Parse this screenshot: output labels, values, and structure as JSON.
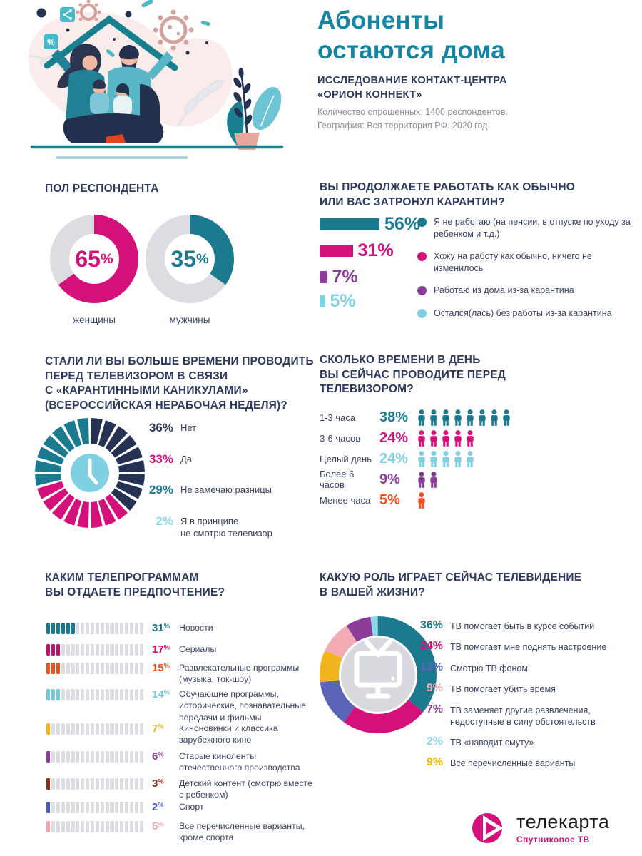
{
  "header": {
    "title": "Абоненты\nостаются дома",
    "subtitle": "ИССЛЕДОВАНИЕ КОНТАКТ-ЦЕНТРА\n«ОРИОН КОННЕКТ»",
    "meta": "Количество опрошенных: 1400  респондентов.\nГеография: Вся территория РФ. 2020 год."
  },
  "logo": {
    "name": "телекарта",
    "tagline": "Спутниковое ТВ",
    "color": "#d4117a"
  },
  "palette": {
    "navy": "#2d3a5e",
    "teal": "#1c7a8e",
    "magenta": "#d4117a",
    "purple": "#8c3d97",
    "lightblue": "#7fd0e2",
    "track_gray": "#dcdde3",
    "center_gray": "#d8d9de"
  },
  "chart_data": [
    {
      "id": "gender",
      "type": "donut",
      "title": "ПОЛ РЕСПОНДЕНТА",
      "items": [
        {
          "label": "женщины",
          "value": 65,
          "color": "#d4117a"
        },
        {
          "label": "мужчины",
          "value": 35,
          "color": "#1c7a8e"
        }
      ],
      "track_color": "#dcdde3",
      "legend_position": "below",
      "grid": false
    },
    {
      "id": "work",
      "type": "bar",
      "title": "ВЫ ПРОДОЛЖАЕТЕ РАБОТАТЬ КАК ОБЫЧНО\nИЛИ ВАС ЗАТРОНУЛ КАРАНТИН?",
      "items": [
        {
          "value": 56,
          "color": "#1c7a8e",
          "label": "Я  не работаю (на пенсии, в отпуске по уходу за ребенком и т.д.)"
        },
        {
          "value": 31,
          "color": "#d4117a",
          "label": "Хожу на работу как обычно, ничего не изменилось"
        },
        {
          "value": 7,
          "color": "#8c3d97",
          "label": "Работаю из дома из-за карантина"
        },
        {
          "value": 5,
          "color": "#7fd0e2",
          "label": "Остался(лась) без работы из-за карантина"
        }
      ],
      "xlim": [
        0,
        60
      ],
      "legend_position": "right",
      "grid": false
    },
    {
      "id": "tv_more",
      "type": "pie",
      "title": "СТАЛИ ЛИ ВЫ БОЛЬШЕ ВРЕМЕНИ ПРОВОДИТЬ\nПЕРЕД ТЕЛЕВИЗОРОМ В СВЯЗИ\nС «КАРАНТИННЫМИ КАНИКУЛАМИ»\n(ВСЕРОССИЙСКАЯ НЕРАБОЧАЯ НЕДЕЛЯ)?",
      "items": [
        {
          "value": 36,
          "color": "#263253",
          "label": "Нет"
        },
        {
          "value": 33,
          "color": "#d4117a",
          "label": "Да"
        },
        {
          "value": 29,
          "color": "#1c7a8e",
          "label": "Не замечаю разницы"
        },
        {
          "value": 2,
          "color": "#8fd8e8",
          "label": "Я в принципе\nне смотрю телевизор"
        }
      ],
      "style": "segmented-wheel-with-clock",
      "segments": 24,
      "legend_position": "right"
    },
    {
      "id": "tv_time",
      "type": "bar",
      "title": "СКОЛЬКО ВРЕМЕНИ В ДЕНЬ\nВЫ СЕЙЧАС ПРОВОДИТЕ ПЕРЕД\nТЕЛЕВИЗОРОМ?",
      "style": "pictogram-people",
      "items": [
        {
          "label": "1-3 часа",
          "value": 38,
          "color": "#1c7a8e",
          "icons": 8
        },
        {
          "label": "3-6 часов",
          "value": 24,
          "color": "#d4117a",
          "icons": 5
        },
        {
          "label": "Целый день",
          "value": 24,
          "color": "#7fd0e2",
          "icons": 5
        },
        {
          "label": "Более 6 часов",
          "value": 9,
          "color": "#8c3d97",
          "icons": 2
        },
        {
          "label": "Менее часа",
          "value": 5,
          "color": "#f04e23",
          "icons": 1
        }
      ]
    },
    {
      "id": "programs",
      "type": "bar",
      "title": "КАКИМ ТЕЛЕПРОГРАММАМ\nВЫ ОТДАЕТЕ ПРЕДПОЧТЕНИЕ?",
      "style": "segmented-dotted-bar",
      "segments_total": 20,
      "track_color": "#dcdde3",
      "items": [
        {
          "value": 31,
          "color": "#1c7a8e",
          "label": "Новости"
        },
        {
          "value": 17,
          "color": "#c50f6d",
          "label": "Сериалы"
        },
        {
          "value": 15,
          "color": "#e8541d",
          "label": "Развлекательные программы (музыка, ток-шоу)"
        },
        {
          "value": 14,
          "color": "#72cadd",
          "label": "Обучающие программы, исторические, познавательные передачи и фильмы"
        },
        {
          "value": 7,
          "color": "#f0b422",
          "label": "Киноновинки и классика зарубежного кино"
        },
        {
          "value": 6,
          "color": "#8c3d97",
          "label": "Старые киноленты отечественного производства"
        },
        {
          "value": 3,
          "color": "#8c2c1a",
          "label": "Детский контент (смотрю вместе с ребенком)"
        },
        {
          "value": 2,
          "color": "#4a5cbe",
          "label": "Спорт"
        },
        {
          "value": 5,
          "color": "#f5a6ab",
          "label": "Все перечисленные варианты, кроме спорта"
        }
      ]
    },
    {
      "id": "tv_role",
      "type": "pie",
      "title": "КАКУЮ РОЛЬ ИГРАЕТ СЕЙЧАС ТЕЛЕВИДЕНИЕ\nВ ВАШЕЙ ЖИЗНИ?",
      "style": "donut-with-tv-icon",
      "items": [
        {
          "value": 36,
          "color": "#1c7a8e",
          "label": "ТВ помогает быть в курсе событий"
        },
        {
          "value": 24,
          "color": "#d4117a",
          "label": "ТВ помогает мне  поднять настроение"
        },
        {
          "value": 13,
          "color": "#5a65b8",
          "label": "Смотрю ТВ фоном"
        },
        {
          "value": 9,
          "color": "#f2abb2",
          "label": "ТВ помогает убить время"
        },
        {
          "value": 7,
          "color": "#8c3d97",
          "label": "ТВ заменяет другие развлечения, недоступные в силу обстоятельств"
        },
        {
          "value": 2,
          "color": "#8fd8e8",
          "label": "ТВ «наводит смуту»"
        },
        {
          "value": 9,
          "color": "#f2b51d",
          "label": "Все перечисленные варианты"
        }
      ],
      "arc_order": [
        0,
        1,
        2,
        6,
        3,
        4,
        5
      ],
      "legend_position": "right"
    }
  ]
}
